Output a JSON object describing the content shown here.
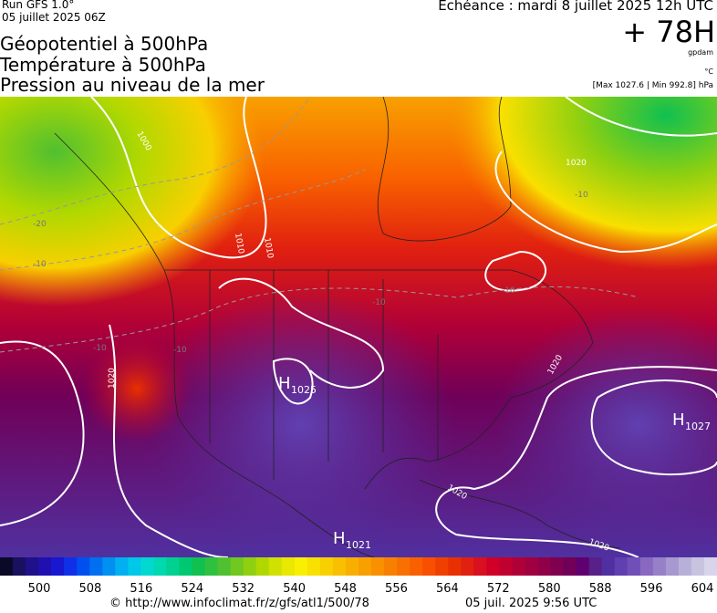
{
  "header": {
    "run": "Run GFS 1.0°",
    "run_date": "05 juillet 2025 06Z",
    "echeance": "Echéance : mardi 8 juillet 2025 12h UTC",
    "lead": "+ 78H",
    "unit_geo": "gpdam",
    "unit_temp": "°C",
    "maxmin": "[Max 1027.6 | Min 992.8] hPa",
    "titles": [
      "Géopotentiel à 500hPa",
      "Température à 500hPa",
      "Pression au niveau de la mer"
    ]
  },
  "map": {
    "highs": [
      {
        "letter": "H",
        "value": "1025"
      },
      {
        "letter": "H",
        "value": "1027"
      },
      {
        "letter": "H",
        "value": "1021"
      }
    ],
    "isobar_labels": [
      "1020",
      "1010",
      "1000",
      "1020",
      "1020",
      "1020",
      "1020",
      "1010"
    ],
    "temp_labels": [
      "-20",
      "-10",
      "-10",
      "-10",
      "-10",
      "-10",
      "-10"
    ]
  },
  "colorbar": {
    "labels": [
      500,
      508,
      516,
      524,
      532,
      540,
      548,
      556,
      564,
      572,
      580,
      588,
      596,
      604
    ],
    "colors": [
      "#0a0a28",
      "#1a1060",
      "#20108a",
      "#2010b0",
      "#1818d0",
      "#1030e8",
      "#0050f0",
      "#0070f0",
      "#0090f0",
      "#00b0f0",
      "#00c8e8",
      "#00d8d0",
      "#00d8b0",
      "#00d090",
      "#00c870",
      "#10c050",
      "#30c040",
      "#50c030",
      "#70c820",
      "#90d010",
      "#b0d800",
      "#d0e000",
      "#e8e800",
      "#f8f000",
      "#f8e000",
      "#f8d000",
      "#f8c000",
      "#f8b000",
      "#f8a000",
      "#f89000",
      "#f88000",
      "#f87000",
      "#f86000",
      "#f85000",
      "#f04000",
      "#e83000",
      "#e02010",
      "#d81020",
      "#d00028",
      "#c00030",
      "#b00038",
      "#a00040",
      "#900048",
      "#800050",
      "#700058",
      "#600070",
      "#582088",
      "#5030a0",
      "#6040b0",
      "#7050b8",
      "#8868c0",
      "#9880c8",
      "#a898d0",
      "#b8b0d8",
      "#c8c4e0",
      "#d8d4ec"
    ]
  },
  "footer": {
    "source": "© http://www.infoclimat.fr/z/gfs/atl1/500/78",
    "generated": "05 juil. 2025  9:56 UTC"
  }
}
